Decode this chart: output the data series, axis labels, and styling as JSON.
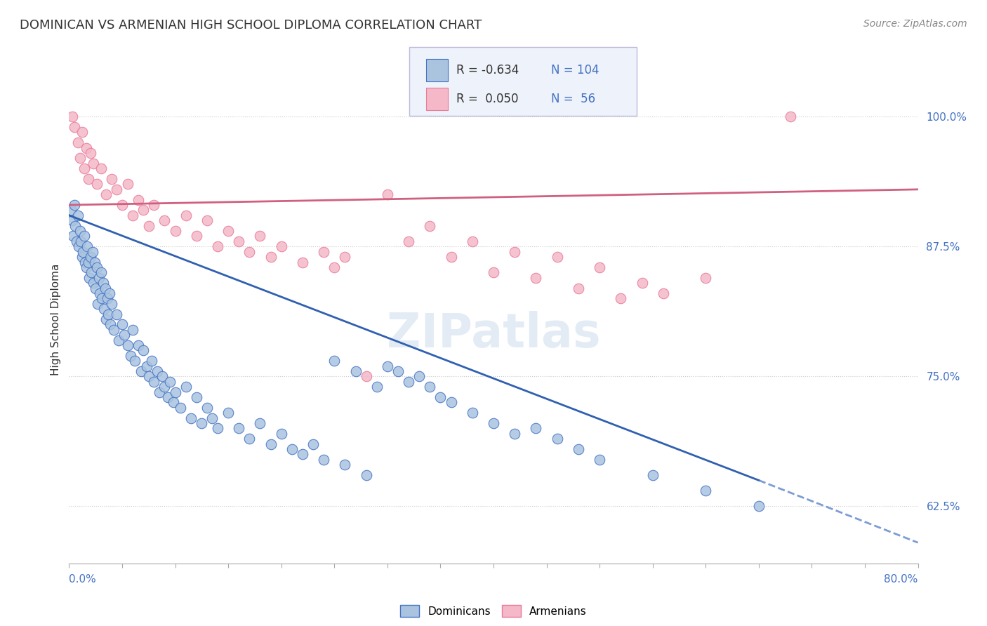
{
  "title": "DOMINICAN VS ARMENIAN HIGH SCHOOL DIPLOMA CORRELATION CHART",
  "source": "Source: ZipAtlas.com",
  "ylabel": "High School Diploma",
  "right_yticklabels": [
    "62.5%",
    "75.0%",
    "87.5%",
    "100.0%"
  ],
  "right_ytick_vals": [
    62.5,
    75.0,
    87.5,
    100.0
  ],
  "xmin": 0.0,
  "xmax": 80.0,
  "ymin": 57.0,
  "ymax": 104.0,
  "legend_r1": "R = -0.634",
  "legend_n1": "N = 104",
  "legend_r2": "R =  0.050",
  "legend_n2": "N =  56",
  "blue_color": "#aac4e0",
  "blue_edge_color": "#4472c4",
  "pink_color": "#f4b8c8",
  "pink_edge_color": "#e87a9a",
  "blue_line_color": "#3060b0",
  "pink_line_color": "#d06080",
  "blue_dots": [
    [
      0.2,
      91.0
    ],
    [
      0.3,
      90.0
    ],
    [
      0.4,
      88.5
    ],
    [
      0.5,
      91.5
    ],
    [
      0.6,
      89.5
    ],
    [
      0.7,
      88.0
    ],
    [
      0.8,
      90.5
    ],
    [
      0.9,
      87.5
    ],
    [
      1.0,
      89.0
    ],
    [
      1.1,
      88.0
    ],
    [
      1.2,
      86.5
    ],
    [
      1.3,
      87.0
    ],
    [
      1.4,
      88.5
    ],
    [
      1.5,
      86.0
    ],
    [
      1.6,
      85.5
    ],
    [
      1.7,
      87.5
    ],
    [
      1.8,
      86.0
    ],
    [
      1.9,
      84.5
    ],
    [
      2.0,
      86.5
    ],
    [
      2.1,
      85.0
    ],
    [
      2.2,
      87.0
    ],
    [
      2.3,
      84.0
    ],
    [
      2.4,
      86.0
    ],
    [
      2.5,
      83.5
    ],
    [
      2.6,
      85.5
    ],
    [
      2.7,
      82.0
    ],
    [
      2.8,
      84.5
    ],
    [
      2.9,
      83.0
    ],
    [
      3.0,
      85.0
    ],
    [
      3.1,
      82.5
    ],
    [
      3.2,
      84.0
    ],
    [
      3.3,
      81.5
    ],
    [
      3.4,
      83.5
    ],
    [
      3.5,
      80.5
    ],
    [
      3.6,
      82.5
    ],
    [
      3.7,
      81.0
    ],
    [
      3.8,
      83.0
    ],
    [
      3.9,
      80.0
    ],
    [
      4.0,
      82.0
    ],
    [
      4.2,
      79.5
    ],
    [
      4.5,
      81.0
    ],
    [
      4.7,
      78.5
    ],
    [
      5.0,
      80.0
    ],
    [
      5.2,
      79.0
    ],
    [
      5.5,
      78.0
    ],
    [
      5.8,
      77.0
    ],
    [
      6.0,
      79.5
    ],
    [
      6.2,
      76.5
    ],
    [
      6.5,
      78.0
    ],
    [
      6.8,
      75.5
    ],
    [
      7.0,
      77.5
    ],
    [
      7.3,
      76.0
    ],
    [
      7.5,
      75.0
    ],
    [
      7.8,
      76.5
    ],
    [
      8.0,
      74.5
    ],
    [
      8.3,
      75.5
    ],
    [
      8.5,
      73.5
    ],
    [
      8.8,
      75.0
    ],
    [
      9.0,
      74.0
    ],
    [
      9.3,
      73.0
    ],
    [
      9.5,
      74.5
    ],
    [
      9.8,
      72.5
    ],
    [
      10.0,
      73.5
    ],
    [
      10.5,
      72.0
    ],
    [
      11.0,
      74.0
    ],
    [
      11.5,
      71.0
    ],
    [
      12.0,
      73.0
    ],
    [
      12.5,
      70.5
    ],
    [
      13.0,
      72.0
    ],
    [
      13.5,
      71.0
    ],
    [
      14.0,
      70.0
    ],
    [
      15.0,
      71.5
    ],
    [
      16.0,
      70.0
    ],
    [
      17.0,
      69.0
    ],
    [
      18.0,
      70.5
    ],
    [
      19.0,
      68.5
    ],
    [
      20.0,
      69.5
    ],
    [
      21.0,
      68.0
    ],
    [
      22.0,
      67.5
    ],
    [
      23.0,
      68.5
    ],
    [
      24.0,
      67.0
    ],
    [
      25.0,
      76.5
    ],
    [
      26.0,
      66.5
    ],
    [
      27.0,
      75.5
    ],
    [
      28.0,
      65.5
    ],
    [
      29.0,
      74.0
    ],
    [
      30.0,
      76.0
    ],
    [
      31.0,
      75.5
    ],
    [
      32.0,
      74.5
    ],
    [
      33.0,
      75.0
    ],
    [
      34.0,
      74.0
    ],
    [
      35.0,
      73.0
    ],
    [
      36.0,
      72.5
    ],
    [
      38.0,
      71.5
    ],
    [
      40.0,
      70.5
    ],
    [
      42.0,
      69.5
    ],
    [
      44.0,
      70.0
    ],
    [
      46.0,
      69.0
    ],
    [
      48.0,
      68.0
    ],
    [
      50.0,
      67.0
    ],
    [
      55.0,
      65.5
    ],
    [
      60.0,
      64.0
    ],
    [
      65.0,
      62.5
    ]
  ],
  "pink_dots": [
    [
      0.3,
      100.0
    ],
    [
      0.5,
      99.0
    ],
    [
      0.8,
      97.5
    ],
    [
      1.0,
      96.0
    ],
    [
      1.2,
      98.5
    ],
    [
      1.4,
      95.0
    ],
    [
      1.6,
      97.0
    ],
    [
      1.8,
      94.0
    ],
    [
      2.0,
      96.5
    ],
    [
      2.3,
      95.5
    ],
    [
      2.6,
      93.5
    ],
    [
      3.0,
      95.0
    ],
    [
      3.5,
      92.5
    ],
    [
      4.0,
      94.0
    ],
    [
      4.5,
      93.0
    ],
    [
      5.0,
      91.5
    ],
    [
      5.5,
      93.5
    ],
    [
      6.0,
      90.5
    ],
    [
      6.5,
      92.0
    ],
    [
      7.0,
      91.0
    ],
    [
      7.5,
      89.5
    ],
    [
      8.0,
      91.5
    ],
    [
      9.0,
      90.0
    ],
    [
      10.0,
      89.0
    ],
    [
      11.0,
      90.5
    ],
    [
      12.0,
      88.5
    ],
    [
      13.0,
      90.0
    ],
    [
      14.0,
      87.5
    ],
    [
      15.0,
      89.0
    ],
    [
      16.0,
      88.0
    ],
    [
      17.0,
      87.0
    ],
    [
      18.0,
      88.5
    ],
    [
      19.0,
      86.5
    ],
    [
      20.0,
      87.5
    ],
    [
      22.0,
      86.0
    ],
    [
      24.0,
      87.0
    ],
    [
      25.0,
      85.5
    ],
    [
      26.0,
      86.5
    ],
    [
      28.0,
      75.0
    ],
    [
      30.0,
      92.5
    ],
    [
      32.0,
      88.0
    ],
    [
      34.0,
      89.5
    ],
    [
      36.0,
      86.5
    ],
    [
      38.0,
      88.0
    ],
    [
      40.0,
      85.0
    ],
    [
      42.0,
      87.0
    ],
    [
      44.0,
      84.5
    ],
    [
      46.0,
      86.5
    ],
    [
      48.0,
      83.5
    ],
    [
      50.0,
      85.5
    ],
    [
      52.0,
      82.5
    ],
    [
      54.0,
      84.0
    ],
    [
      56.0,
      83.0
    ],
    [
      60.0,
      84.5
    ],
    [
      68.0,
      100.0
    ]
  ],
  "blue_trend_x0": 0.0,
  "blue_trend_y0": 90.5,
  "blue_trend_x1": 65.0,
  "blue_trend_y1": 65.0,
  "blue_dash_x0": 65.0,
  "blue_dash_y0": 65.0,
  "blue_dash_x1": 80.0,
  "blue_dash_y1": 59.0,
  "pink_trend_x0": 0.0,
  "pink_trend_y0": 91.5,
  "pink_trend_x1": 80.0,
  "pink_trend_y1": 93.0,
  "watermark": "ZIPatlas",
  "background_color": "#ffffff",
  "grid_color": "#cccccc",
  "title_fontsize": 13,
  "source_fontsize": 10,
  "legend_fontsize": 12,
  "dot_size": 110
}
